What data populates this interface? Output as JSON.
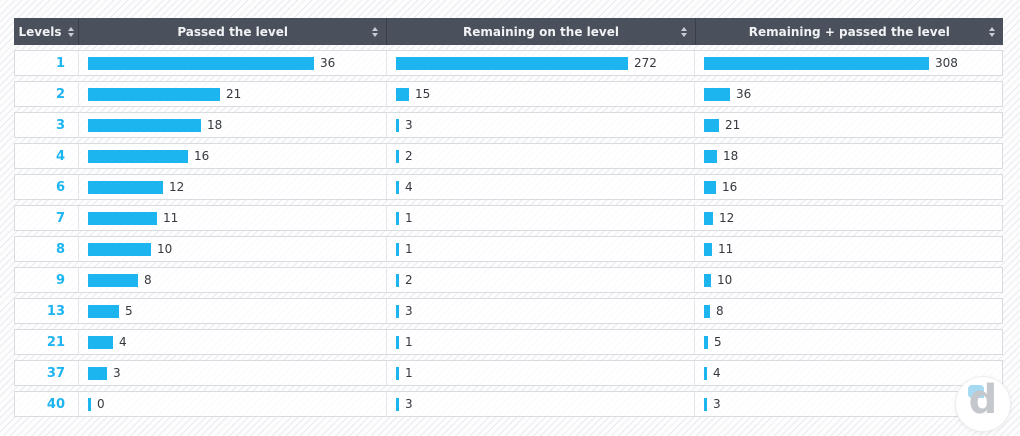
{
  "header": {
    "columns": [
      {
        "label": "Levels",
        "sortable": true
      },
      {
        "label": "Passed the level",
        "sortable": true
      },
      {
        "label": "Remaining on the level",
        "sortable": true
      },
      {
        "label": "Remaining + passed the level",
        "sortable": true
      }
    ]
  },
  "chart_data": {
    "type": "bar",
    "orientation": "horizontal",
    "title": "",
    "categories": [
      "1",
      "2",
      "3",
      "4",
      "6",
      "7",
      "8",
      "9",
      "13",
      "21",
      "37",
      "40"
    ],
    "series": [
      {
        "name": "Passed the level",
        "values": [
          36,
          21,
          18,
          16,
          12,
          11,
          10,
          8,
          5,
          4,
          3,
          0
        ]
      },
      {
        "name": "Remaining on the level",
        "values": [
          272,
          15,
          3,
          2,
          4,
          1,
          1,
          2,
          3,
          1,
          1,
          3
        ]
      },
      {
        "name": "Remaining + passed the level",
        "values": [
          308,
          36,
          21,
          18,
          16,
          12,
          11,
          10,
          8,
          5,
          4,
          3
        ]
      }
    ],
    "scaling": "per-column-max",
    "value_labels": "right-of-bar",
    "legend": "none",
    "grid": false
  },
  "colors": {
    "bar": "#1db5f0",
    "level_text": "#1db5f0",
    "header_bg": "#4b515c",
    "header_text": "#f1f2f4",
    "value_text": "#35393f",
    "row_border": "#d8dce1"
  },
  "logo": {
    "letter": "d"
  }
}
